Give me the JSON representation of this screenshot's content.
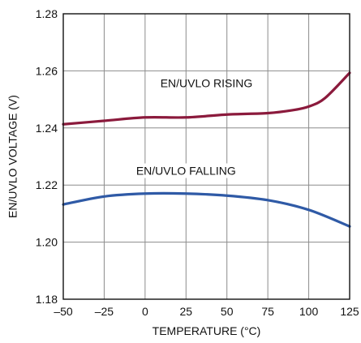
{
  "chart_data": {
    "type": "line",
    "xlabel": "TEMPERATURE (°C)",
    "ylabel": "EN/UVLO VOLTAGE (V)",
    "xlim": [
      -50,
      125
    ],
    "ylim": [
      1.18,
      1.28
    ],
    "x_ticks": [
      -50,
      -25,
      0,
      25,
      50,
      75,
      100,
      125
    ],
    "x_tick_labels": [
      "–50",
      "–25",
      "0",
      "25",
      "50",
      "75",
      "100",
      "125"
    ],
    "y_ticks": [
      1.18,
      1.2,
      1.22,
      1.24,
      1.26,
      1.28
    ],
    "y_tick_labels": [
      "1.18",
      "1.20",
      "1.22",
      "1.24",
      "1.26",
      "1.28"
    ],
    "grid": true,
    "series": [
      {
        "name": "EN/UVLO RISING",
        "color": "#8b1a3c",
        "x": [
          -50,
          -25,
          0,
          25,
          50,
          75,
          90,
          100,
          110,
          125
        ],
        "y": [
          1.2413,
          1.2425,
          1.2437,
          1.2437,
          1.2447,
          1.2452,
          1.2462,
          1.2475,
          1.2505,
          1.2593
        ]
      },
      {
        "name": "EN/UVLO FALLING",
        "color": "#2f5aa6",
        "x": [
          -50,
          -25,
          0,
          25,
          50,
          75,
          100,
          125
        ],
        "y": [
          1.2132,
          1.216,
          1.217,
          1.217,
          1.2163,
          1.2147,
          1.2113,
          1.2055
        ]
      }
    ]
  }
}
